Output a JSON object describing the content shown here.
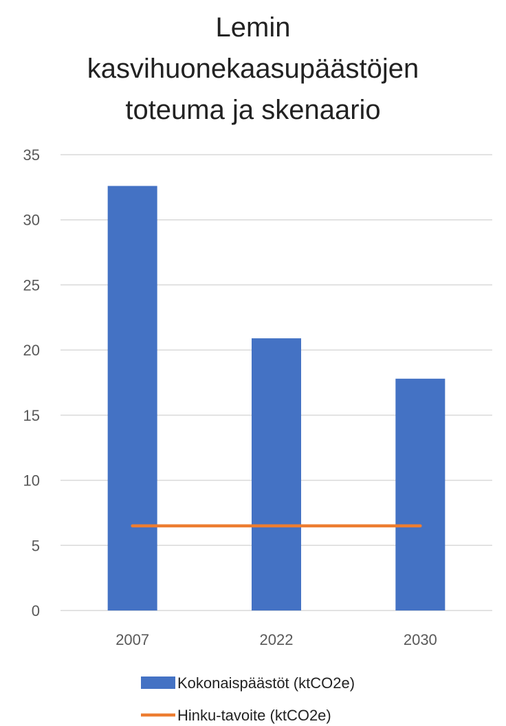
{
  "chart_data": {
    "type": "bar",
    "title_lines": [
      "Lemin",
      "kasvihuonekaasupäästöjen",
      "toteuma ja skenaario"
    ],
    "categories": [
      "2007",
      "2022",
      "2030"
    ],
    "series": [
      {
        "name": "Kokonaispäästöt (ktCO2e)",
        "type": "bar",
        "color": "#4472C4",
        "values": [
          32.6,
          20.9,
          17.8
        ]
      },
      {
        "name": "Hinku-tavoite (ktCO2e)",
        "type": "line",
        "color": "#ED7D31",
        "values": [
          6.5,
          6.5,
          6.5
        ]
      }
    ],
    "ylim": [
      0,
      35
    ],
    "yticks": [
      "0",
      "5",
      "10",
      "15",
      "20",
      "25",
      "30",
      "35"
    ],
    "ytick_values": [
      0,
      5,
      10,
      15,
      20,
      25,
      30,
      35
    ],
    "grid": true,
    "legend_position": "bottom"
  }
}
